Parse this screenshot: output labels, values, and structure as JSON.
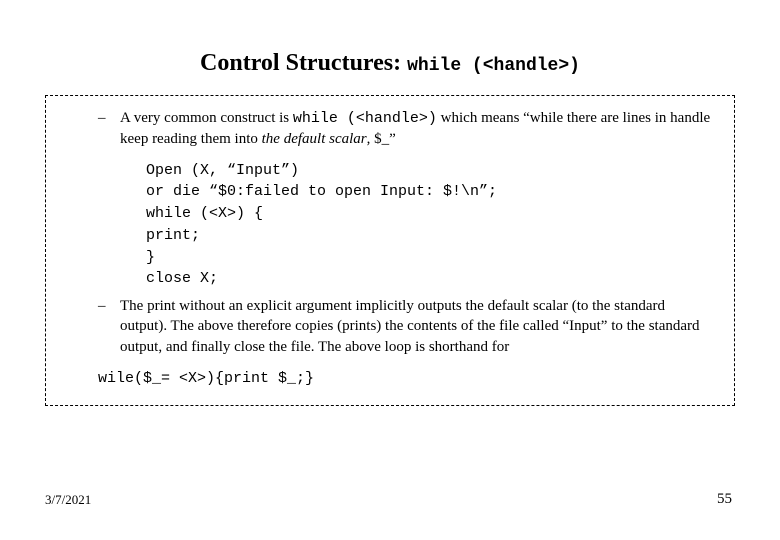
{
  "title": {
    "main": "Control Structures:",
    "code": "while (<handle>)"
  },
  "bullets": [
    {
      "prefix": "A very common construct is ",
      "code": "while (<handle>)",
      "mid": " which means “while there are lines in handle keep reading them into ",
      "italic": "the default scalar",
      "suffix": ", $_”"
    }
  ],
  "code": {
    "l1": "Open (X, “Input”)",
    "l2": "or die “$0:failed to open Input: $!\\n”;",
    "l3": "while (<X>) {",
    "l4": "print;",
    "l5": "}",
    "l6": "close X;"
  },
  "bullet2": "The print without an explicit argument implicitly outputs the default scalar (to the standard output). The above therefore copies (prints) the contents of the file called “Input” to the standard output, and finally close the file. The above loop is shorthand for",
  "final_code": "wile($_= <X>){print $_;}",
  "footer": {
    "date": "3/7/2021",
    "page": "55"
  },
  "style": {
    "background_color": "#ffffff",
    "text_color": "#000000",
    "border_color": "#000000",
    "title_fontsize": 24,
    "body_fontsize": 15,
    "footer_fontsize": 13,
    "mono_font": "Courier New",
    "serif_font": "Times New Roman"
  }
}
